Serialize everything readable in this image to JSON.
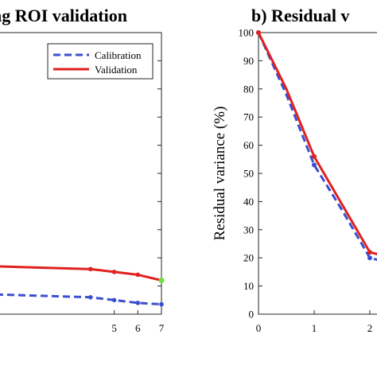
{
  "chart_data": [
    {
      "type": "line",
      "title": "ng ROI validation",
      "xlabel": "",
      "ylabel": "",
      "xlim": [
        0,
        7
      ],
      "ylim": [
        0,
        100
      ],
      "x_ticks": [
        "5",
        "6",
        "7"
      ],
      "grid": false,
      "legend": {
        "placement": "top-right",
        "entries": [
          "Calibration",
          "Validation"
        ]
      },
      "series": [
        {
          "name": "Calibration",
          "style": "dashed",
          "color": "#3a4fd0",
          "x": [
            0,
            4,
            5,
            6,
            7
          ],
          "y": [
            7,
            6,
            5,
            4,
            3.5
          ]
        },
        {
          "name": "Validation",
          "style": "solid",
          "color": "#e02020",
          "x": [
            0,
            4,
            5,
            6,
            7
          ],
          "y": [
            17,
            16,
            15,
            14,
            12
          ]
        }
      ],
      "highlight_point": {
        "x": 7,
        "y": 12,
        "color": "#6ee040"
      }
    },
    {
      "type": "line",
      "title": "b) Residual v",
      "xlabel": "",
      "ylabel": "Residual variance (%)",
      "xlim": [
        0,
        2.2
      ],
      "ylim": [
        0,
        100
      ],
      "x_ticks": [
        "0",
        "1",
        "2"
      ],
      "y_ticks": [
        "0",
        "10",
        "20",
        "30",
        "40",
        "50",
        "60",
        "70",
        "80",
        "90",
        "100"
      ],
      "grid": false,
      "series": [
        {
          "name": "Calibration",
          "style": "dashed",
          "color": "#3a4fd0",
          "x": [
            0,
            0.5,
            1,
            1.5,
            2,
            2.2
          ],
          "y": [
            100,
            78,
            53,
            37,
            20,
            19
          ]
        },
        {
          "name": "Validation",
          "style": "solid",
          "color": "#e02020",
          "x": [
            0,
            0.5,
            1,
            1.5,
            2,
            2.2
          ],
          "y": [
            100,
            80,
            56,
            39,
            22,
            21
          ]
        }
      ]
    }
  ]
}
